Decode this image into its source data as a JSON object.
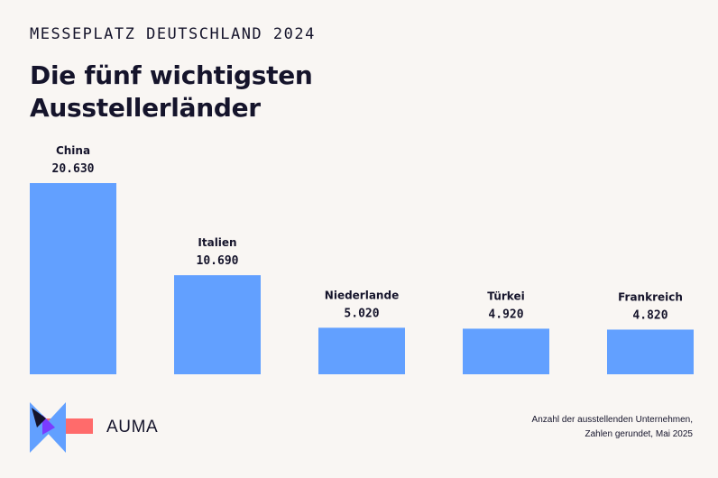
{
  "header": {
    "kicker": "MESSEPLATZ DEUTSCHLAND 2024",
    "title_line1": "Die fünf wichtigsten",
    "title_line2": "Ausstellerländer"
  },
  "chart_data": {
    "type": "bar",
    "categories": [
      "China",
      "Italien",
      "Niederlande",
      "Türkei",
      "Frankreich"
    ],
    "values": [
      20630,
      10690,
      5020,
      4920,
      4820
    ],
    "value_labels": [
      "20.630",
      "10.690",
      "5.020",
      "4.920",
      "4.820"
    ],
    "ylim": [
      0,
      20630
    ],
    "bar_color": "#62a0ff",
    "grid": false,
    "legend": "none"
  },
  "footer": {
    "brand": "AUMA",
    "note_line1": "Anzahl der ausstellenden Unternehmen,",
    "note_line2": "Zahlen gerundet, Mai 2025"
  },
  "colors": {
    "background": "#f9f6f3",
    "text": "#15142b",
    "bar": "#62a0ff",
    "logo_red": "#ff6b6b",
    "logo_purple": "#7a3cff",
    "logo_dark": "#15142b"
  },
  "icons": {
    "logo": "auma-logo-icon"
  }
}
